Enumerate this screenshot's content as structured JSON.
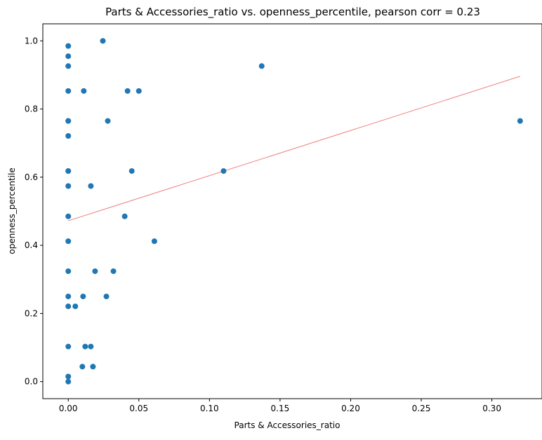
{
  "chart_data": {
    "type": "scatter",
    "title": "Parts & Accessories_ratio vs. openness_percentile, pearson corr = 0.23",
    "xlabel": "Parts & Accessories_ratio",
    "ylabel": "openness_percentile",
    "xlim": [
      -0.018,
      0.335
    ],
    "ylim": [
      -0.05,
      1.05
    ],
    "xticks": [
      0.0,
      0.05,
      0.1,
      0.15,
      0.2,
      0.25,
      0.3
    ],
    "xtick_labels": [
      "0.00",
      "0.05",
      "0.10",
      "0.15",
      "0.20",
      "0.25",
      "0.30"
    ],
    "yticks": [
      0.0,
      0.2,
      0.4,
      0.6,
      0.8,
      1.0
    ],
    "ytick_labels": [
      "0.0",
      "0.2",
      "0.4",
      "0.6",
      "0.8",
      "1.0"
    ],
    "grid": false,
    "point_color": "#1f77b4",
    "trend_color": "#f08080",
    "trend_line": {
      "x": [
        0.0,
        0.32
      ],
      "y": [
        0.472,
        0.896
      ]
    },
    "points": [
      {
        "x": 0.0,
        "y": 0.985
      },
      {
        "x": 0.0,
        "y": 0.955
      },
      {
        "x": 0.0,
        "y": 0.926
      },
      {
        "x": 0.0,
        "y": 0.853
      },
      {
        "x": 0.0,
        "y": 0.765
      },
      {
        "x": 0.0,
        "y": 0.765
      },
      {
        "x": 0.0,
        "y": 0.721
      },
      {
        "x": 0.0,
        "y": 0.618
      },
      {
        "x": 0.0,
        "y": 0.618
      },
      {
        "x": 0.0,
        "y": 0.574
      },
      {
        "x": 0.0,
        "y": 0.485
      },
      {
        "x": 0.0,
        "y": 0.412
      },
      {
        "x": 0.0,
        "y": 0.324
      },
      {
        "x": 0.0,
        "y": 0.25
      },
      {
        "x": 0.0,
        "y": 0.221
      },
      {
        "x": 0.0,
        "y": 0.103
      },
      {
        "x": 0.0,
        "y": 0.015
      },
      {
        "x": 0.0,
        "y": 0.0
      },
      {
        "x": 0.005,
        "y": 0.221
      },
      {
        "x": 0.01,
        "y": 0.044
      },
      {
        "x": 0.0105,
        "y": 0.25
      },
      {
        "x": 0.011,
        "y": 0.853
      },
      {
        "x": 0.012,
        "y": 0.103
      },
      {
        "x": 0.016,
        "y": 0.574
      },
      {
        "x": 0.016,
        "y": 0.103
      },
      {
        "x": 0.0175,
        "y": 0.044
      },
      {
        "x": 0.019,
        "y": 0.324
      },
      {
        "x": 0.0245,
        "y": 1.0
      },
      {
        "x": 0.027,
        "y": 0.25
      },
      {
        "x": 0.028,
        "y": 0.765
      },
      {
        "x": 0.032,
        "y": 0.324
      },
      {
        "x": 0.04,
        "y": 0.485
      },
      {
        "x": 0.042,
        "y": 0.853
      },
      {
        "x": 0.045,
        "y": 0.618
      },
      {
        "x": 0.05,
        "y": 0.853
      },
      {
        "x": 0.061,
        "y": 0.412
      },
      {
        "x": 0.11,
        "y": 0.618
      },
      {
        "x": 0.137,
        "y": 0.926
      },
      {
        "x": 0.32,
        "y": 0.765
      }
    ]
  }
}
